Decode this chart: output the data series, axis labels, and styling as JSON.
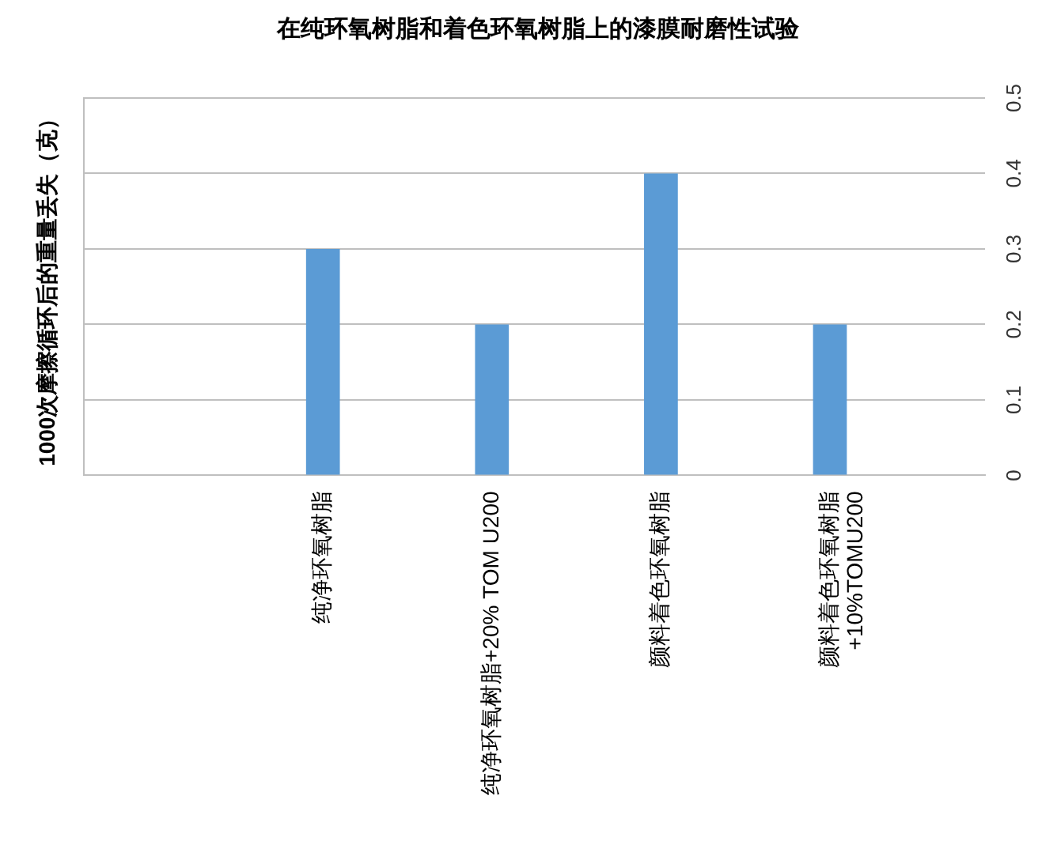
{
  "chart_data": {
    "type": "bar",
    "title": "在纯环氧树脂和着色环氧树脂上的漆膜耐磨性试验",
    "ylabel": "1000次摩擦循环后的重量丢失（克）",
    "categories": [
      "纯净环氧树脂",
      "纯净环氧树脂+20% TOM U200",
      "颜料着色环氧树脂",
      "颜料着色环氧树脂\n+10%TOMU200"
    ],
    "values": [
      0.3,
      0.2,
      0.4,
      0.2
    ],
    "color": "#5b9bd5",
    "ylim": [
      0,
      0.5
    ],
    "yticks": [
      0,
      0.1,
      0.2,
      0.3,
      0.4,
      0.5
    ],
    "grid": "y",
    "legend": false
  }
}
